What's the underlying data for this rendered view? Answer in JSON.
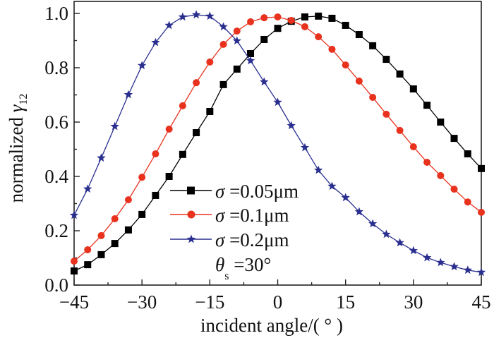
{
  "chart_data": {
    "type": "line",
    "title": "",
    "xlabel": "incident angle/(°)",
    "ylabel": "normalized γ12",
    "ylabel_main": "normalized ",
    "ylabel_symbol": "γ",
    "ylabel_sub": "12",
    "xlabel_text": "incident angle/( ° )",
    "xlim": [
      -45,
      45
    ],
    "ylim": [
      0.0,
      1.05
    ],
    "xticks": [
      -45,
      -30,
      -15,
      0,
      15,
      30,
      45
    ],
    "xtick_labels": [
      "−45",
      "−30",
      "−15",
      "0",
      "15",
      "30",
      "45"
    ],
    "yticks": [
      0.0,
      0.2,
      0.4,
      0.6,
      0.8,
      1.0
    ],
    "ytick_labels": [
      "0.0",
      "0.2",
      "0.4",
      "0.6",
      "0.8",
      "1.0"
    ],
    "grid": false,
    "legend_position": "bottom-center",
    "x": [
      -45,
      -42,
      -39,
      -36,
      -33,
      -30,
      -27,
      -24,
      -21,
      -18,
      -15,
      -12,
      -9,
      -6,
      -3,
      0,
      3,
      6,
      9,
      12,
      15,
      18,
      21,
      24,
      27,
      30,
      33,
      36,
      39,
      42,
      45
    ],
    "series": [
      {
        "name": "σ =0.05μm",
        "label_symbol": "σ",
        "label_text": " =0.05μm",
        "color": "#000000",
        "marker": "square",
        "values": [
          0.052,
          0.075,
          0.112,
          0.153,
          0.203,
          0.26,
          0.33,
          0.4,
          0.481,
          0.561,
          0.639,
          0.738,
          0.795,
          0.852,
          0.904,
          0.945,
          0.971,
          0.987,
          0.99,
          0.982,
          0.956,
          0.922,
          0.881,
          0.831,
          0.777,
          0.722,
          0.662,
          0.6,
          0.54,
          0.483,
          0.429
        ]
      },
      {
        "name": "σ =0.1μm",
        "label_symbol": "σ",
        "label_text": " =0.1μm",
        "color": "#e8321e",
        "marker": "circle",
        "values": [
          0.088,
          0.13,
          0.182,
          0.244,
          0.314,
          0.397,
          0.483,
          0.574,
          0.66,
          0.745,
          0.821,
          0.886,
          0.935,
          0.969,
          0.984,
          0.987,
          0.974,
          0.951,
          0.914,
          0.868,
          0.81,
          0.751,
          0.691,
          0.629,
          0.569,
          0.509,
          0.452,
          0.403,
          0.353,
          0.306,
          0.268
        ]
      },
      {
        "name": "σ =0.2μm",
        "label_symbol": "σ",
        "label_text": " =0.2μm",
        "color": "#2a2f8f",
        "marker": "star",
        "values": [
          0.257,
          0.354,
          0.468,
          0.584,
          0.701,
          0.808,
          0.893,
          0.956,
          0.987,
          0.995,
          0.99,
          0.951,
          0.899,
          0.826,
          0.748,
          0.673,
          0.587,
          0.506,
          0.423,
          0.364,
          0.322,
          0.27,
          0.226,
          0.187,
          0.156,
          0.127,
          0.101,
          0.083,
          0.068,
          0.055,
          0.047
        ]
      }
    ],
    "annotation": {
      "symbol": "θ",
      "sub": "s",
      "text": " =30°"
    }
  }
}
